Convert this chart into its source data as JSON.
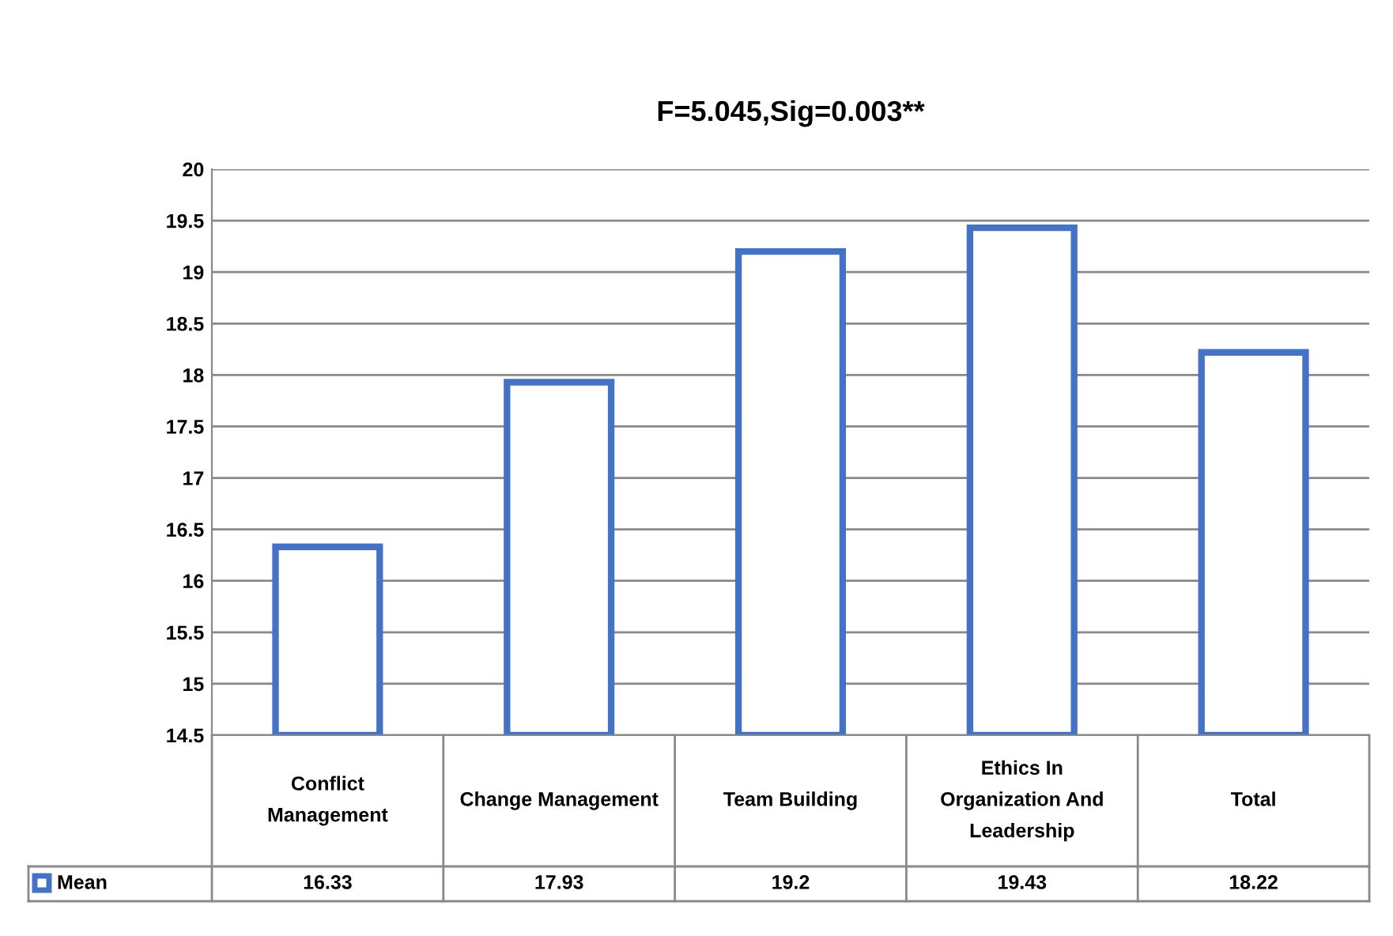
{
  "chart_data": {
    "type": "bar",
    "title": "F=5.045,Sig=0.003**",
    "categories": [
      "Conflict Management",
      "Change Management",
      "Team Building",
      "Ethics In Organization And Leadership",
      "Total"
    ],
    "series": [
      {
        "name": "Mean",
        "color": "#4472c4",
        "values": [
          16.33,
          17.93,
          19.2,
          19.43,
          18.22
        ]
      }
    ],
    "ylim": [
      14.5,
      20
    ],
    "yticks": [
      14.5,
      15,
      15.5,
      16,
      16.5,
      17,
      17.5,
      18,
      18.5,
      19,
      19.5,
      20
    ],
    "grid": "y",
    "data_labels": true,
    "legend": "bottom"
  }
}
